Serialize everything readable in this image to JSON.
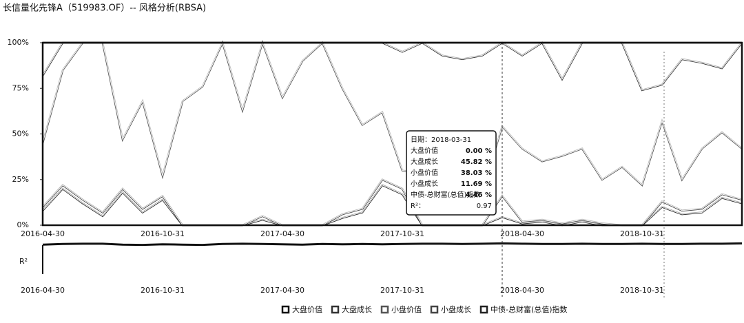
{
  "chart_data": {
    "type": "stacked_area",
    "title": "长信量化先锋A（519983.OF）-- 风格分析(RBSA)",
    "categories": [
      "2016-04-30",
      null,
      null,
      null,
      null,
      null,
      "2016-10-31",
      null,
      null,
      null,
      null,
      null,
      "2017-04-30",
      null,
      null,
      null,
      null,
      null,
      "2017-10-31",
      null,
      null,
      null,
      null,
      null,
      "2018-04-30",
      null,
      null,
      null,
      null,
      null,
      "2018-10-31",
      null,
      null,
      null,
      null,
      null
    ],
    "series": [
      {
        "name": "大盘价值",
        "color": "#111111",
        "values": [
          18,
          0,
          0,
          0,
          0,
          0,
          0,
          0,
          0,
          0,
          0,
          0,
          0,
          0,
          0,
          0,
          0,
          0,
          5,
          0,
          7,
          9,
          7,
          0,
          7,
          0,
          20,
          0,
          0,
          0,
          26,
          23,
          9,
          11,
          14,
          0
        ]
      },
      {
        "name": "大盘成长",
        "color": "#333333",
        "values": [
          37,
          15,
          0,
          0,
          53,
          32,
          73,
          32,
          24,
          0,
          37,
          0,
          30,
          10,
          0,
          25,
          45,
          38,
          65,
          72,
          68,
          71,
          75,
          45.82,
          51,
          65,
          42,
          58,
          75,
          68,
          52,
          20,
          66,
          47,
          35,
          58
        ]
      },
      {
        "name": "小盘价值",
        "color": "#555555",
        "values": [
          35,
          63,
          86,
          93,
          27,
          59,
          11,
          68,
          76,
          100,
          63,
          95,
          70,
          90,
          100,
          69,
          46,
          37,
          10,
          28,
          25,
          20,
          18,
          38.03,
          40,
          32,
          37,
          39,
          24,
          32,
          22,
          44,
          17,
          33,
          34,
          28
        ]
      },
      {
        "name": "小盘成长",
        "color": "#444444",
        "values": [
          2,
          2,
          2,
          2,
          2,
          2,
          2,
          0,
          0,
          0,
          0,
          2,
          0,
          0,
          0,
          2,
          2,
          3,
          3,
          0,
          0,
          0,
          0,
          11.69,
          1,
          1,
          1,
          1,
          1,
          0,
          0,
          3,
          2,
          2,
          2,
          2
        ]
      },
      {
        "name": "中债-总财富(总值)指数",
        "color": "#222222",
        "values": [
          8,
          20,
          12,
          5,
          18,
          7,
          14,
          0,
          0,
          0,
          0,
          3,
          0,
          0,
          0,
          4,
          7,
          22,
          17,
          0,
          0,
          0,
          0,
          4.46,
          1,
          2,
          0,
          2,
          0,
          0,
          0,
          10,
          6,
          7,
          15,
          12
        ]
      }
    ],
    "ylim": [
      0,
      100
    ],
    "yticks": [
      {
        "value": 0,
        "label": "0%"
      },
      {
        "value": 25,
        "label": "25%"
      },
      {
        "value": 50,
        "label": "50%"
      },
      {
        "value": 75,
        "label": "75%"
      },
      {
        "value": 100,
        "label": "100%"
      }
    ],
    "r2": {
      "label": "R²",
      "values": [
        0.93,
        0.95,
        0.96,
        0.96,
        0.93,
        0.92,
        0.94,
        0.93,
        0.92,
        0.95,
        0.96,
        0.95,
        0.94,
        0.93,
        0.95,
        0.94,
        0.95,
        0.94,
        0.95,
        0.96,
        0.96,
        0.95,
        0.96,
        0.97,
        0.96,
        0.95,
        0.95,
        0.96,
        0.95,
        0.95,
        0.96,
        0.95,
        0.95,
        0.96,
        0.96,
        0.97
      ],
      "ylim": [
        0,
        1
      ]
    },
    "tooltip": {
      "date": "日期：2018-03-31",
      "values": [
        "0.00 %",
        "45.82 %",
        "38.03 %",
        "11.69 %",
        "4.46 %"
      ],
      "r2_name": "R²：",
      "r2_value": "0.97"
    }
  }
}
